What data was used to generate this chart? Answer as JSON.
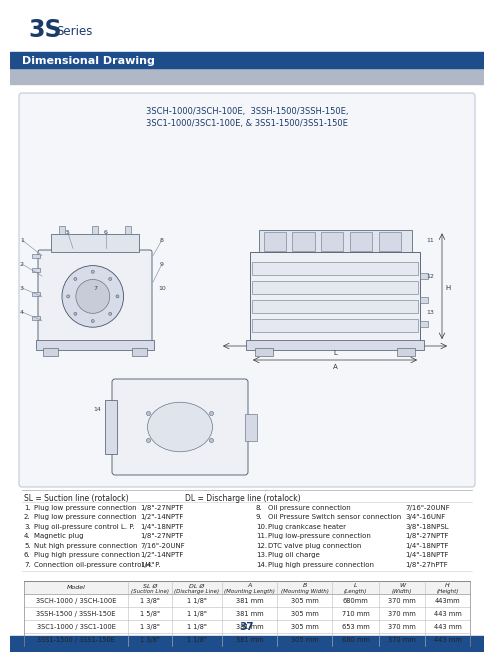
{
  "title_large": "3S",
  "title_series": "Series",
  "subtitle": "Dimensional Drawing",
  "page_number": "37",
  "drawing_title": "3SCH-1000/3SCH-100E,  3SSH-1500/3SSH-150E,\n3SC1-1000/3SC1-100E, & 3SS1-1500/3SS1-150E",
  "legend_left": "SL = Suction line (rotalock)",
  "legend_right": "DL = Discharge line (rotalock)",
  "items_left": [
    [
      "1.",
      "Plug low pressure connection",
      "1/8\"-27NPTF"
    ],
    [
      "2.",
      "Plug low pressure connection",
      "1/2\"-14NPTF"
    ],
    [
      "3.",
      "Plug oil-pressure control L. P.",
      "1/4\"-18NPTF"
    ],
    [
      "4.",
      "Magnetic plug",
      "1/8\"-27NPTF"
    ],
    [
      "5.",
      "Nut high pressure connection",
      "7/16\"-20UNF"
    ],
    [
      "6.",
      "Plug high pressure connection",
      "1/2\"-14NPTF"
    ],
    [
      "7.",
      "Connection oil-pressure control H. P.",
      "1/4\""
    ]
  ],
  "items_right": [
    [
      "8.",
      "Oil pressure connection",
      "7/16\"-20UNF"
    ],
    [
      "9.",
      "Oil Pressure Switch sensor connection",
      "3/4\"-16UNF"
    ],
    [
      "10.",
      "Plug crankcase heater",
      "3/8\"-18NPSL"
    ],
    [
      "11.",
      "Plug low-pressure connection",
      "1/8\"-27NPTF"
    ],
    [
      "12.",
      "DTC valve plug connection",
      "1/4\"-18NPTF"
    ],
    [
      "13.",
      "Plug oil charge",
      "1/4\"-18NPTF"
    ],
    [
      "14.",
      "Plug high pressure connection",
      "1/8\"-27hPTF"
    ]
  ],
  "table_headers": [
    "Model",
    "SL Ø\n(Suction Line)",
    "DL Ø\n(Discharge Line)",
    "A\n(Mounting Length)",
    "B\n(Mounting Width)",
    "L\n(Length)",
    "W\n(Width)",
    "H\n(Height)"
  ],
  "table_rows": [
    [
      "3SCH-1000 / 3SCH-100E",
      "1 3/8\"",
      "1 1/8\"",
      "381 mm",
      "305 mm",
      "680mm",
      "370 mm",
      "443mm"
    ],
    [
      "3SSH-1500 / 3SSH-150E",
      "1 5/8\"",
      "1 1/8\"",
      "381 mm",
      "305 mm",
      "710 mm",
      "370 mm",
      "443 mm"
    ],
    [
      "3SC1-1000 / 3SC1-100E",
      "1 3/8\"",
      "1 1/8\"",
      "381 mm",
      "305 mm",
      "653 mm",
      "370 mm",
      "443 mm"
    ],
    [
      "3SS1-1500 / 3SS1-150E",
      "1 3/8\"",
      "1 1/8\"",
      "381 mm",
      "305 mm",
      "680 mm",
      "370 mm",
      "443 mm"
    ]
  ],
  "bg_color": "#FFFFFF",
  "header_bg": "#1A4A8A",
  "header_text": "#FFFFFF",
  "title_color": "#1A3A6A",
  "bar_color": "#1E4D8C",
  "gray_bar_color": "#B0B8C8",
  "text_color": "#222222",
  "line_color": "#888888",
  "drawing_bg": "#F4F6FA",
  "drawing_border": "#C0C8D8"
}
